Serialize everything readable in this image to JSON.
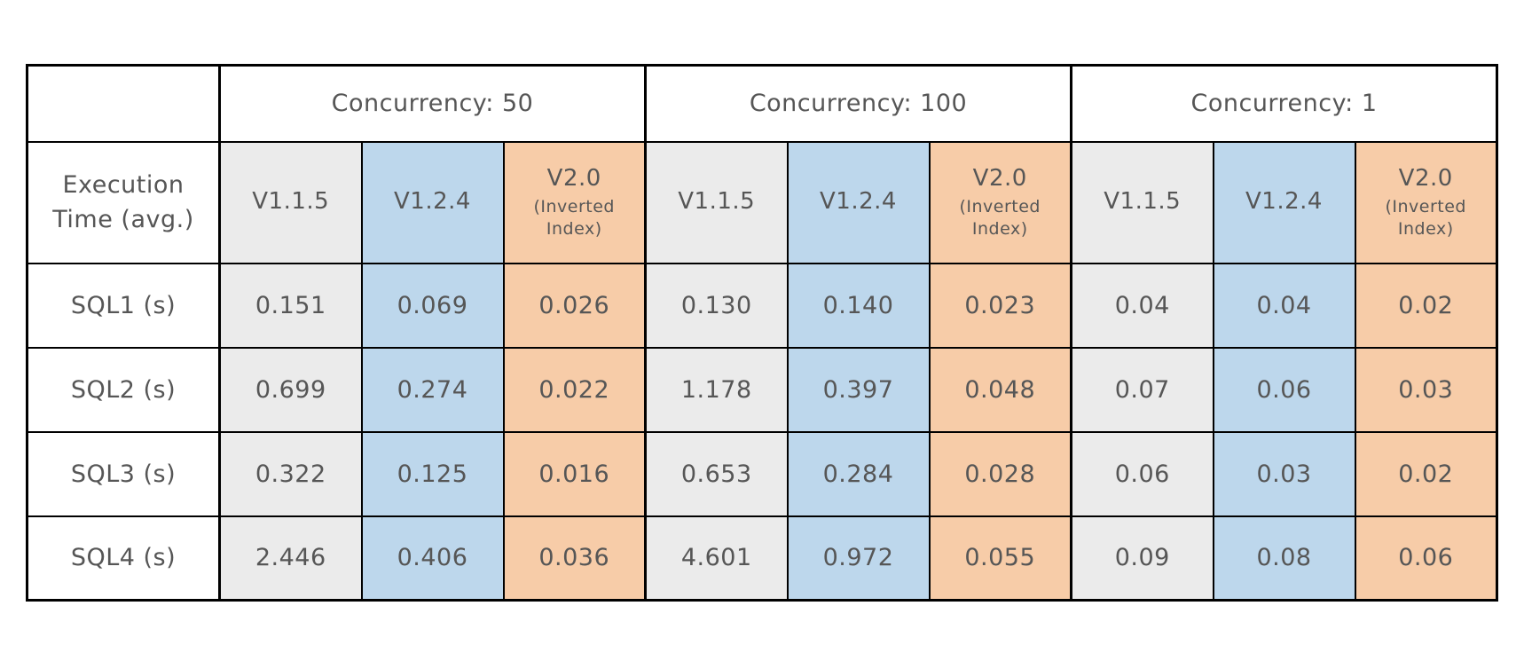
{
  "colors": {
    "grey": "#ebebeb",
    "blue": "#bdd7ec",
    "orange": "#f7cca8",
    "border": "#000000",
    "text": "#565656"
  },
  "chart_data": {
    "type": "table",
    "corner_label": "",
    "row_header_label": "Execution Time (avg.)",
    "groups": [
      {
        "label": "Concurrency: 50"
      },
      {
        "label": "Concurrency: 100"
      },
      {
        "label": "Concurrency: 1"
      }
    ],
    "versions": [
      {
        "name": "V1.1.5",
        "subtitle": "",
        "color_key": "grey"
      },
      {
        "name": "V1.2.4",
        "subtitle": "",
        "color_key": "blue"
      },
      {
        "name": "V2.0",
        "subtitle": "(Inverted Index)",
        "color_key": "orange"
      }
    ],
    "rows": [
      {
        "label": "SQL1 (s)",
        "values": [
          "0.151",
          "0.069",
          "0.026",
          "0.130",
          "0.140",
          "0.023",
          "0.04",
          "0.04",
          "0.02"
        ]
      },
      {
        "label": "SQL2 (s)",
        "values": [
          "0.699",
          "0.274",
          "0.022",
          "1.178",
          "0.397",
          "0.048",
          "0.07",
          "0.06",
          "0.03"
        ]
      },
      {
        "label": "SQL3 (s)",
        "values": [
          "0.322",
          "0.125",
          "0.016",
          "0.653",
          "0.284",
          "0.028",
          "0.06",
          "0.03",
          "0.02"
        ]
      },
      {
        "label": "SQL4 (s)",
        "values": [
          "2.446",
          "0.406",
          "0.036",
          "4.601",
          "0.972",
          "0.055",
          "0.09",
          "0.08",
          "0.06"
        ]
      }
    ]
  }
}
